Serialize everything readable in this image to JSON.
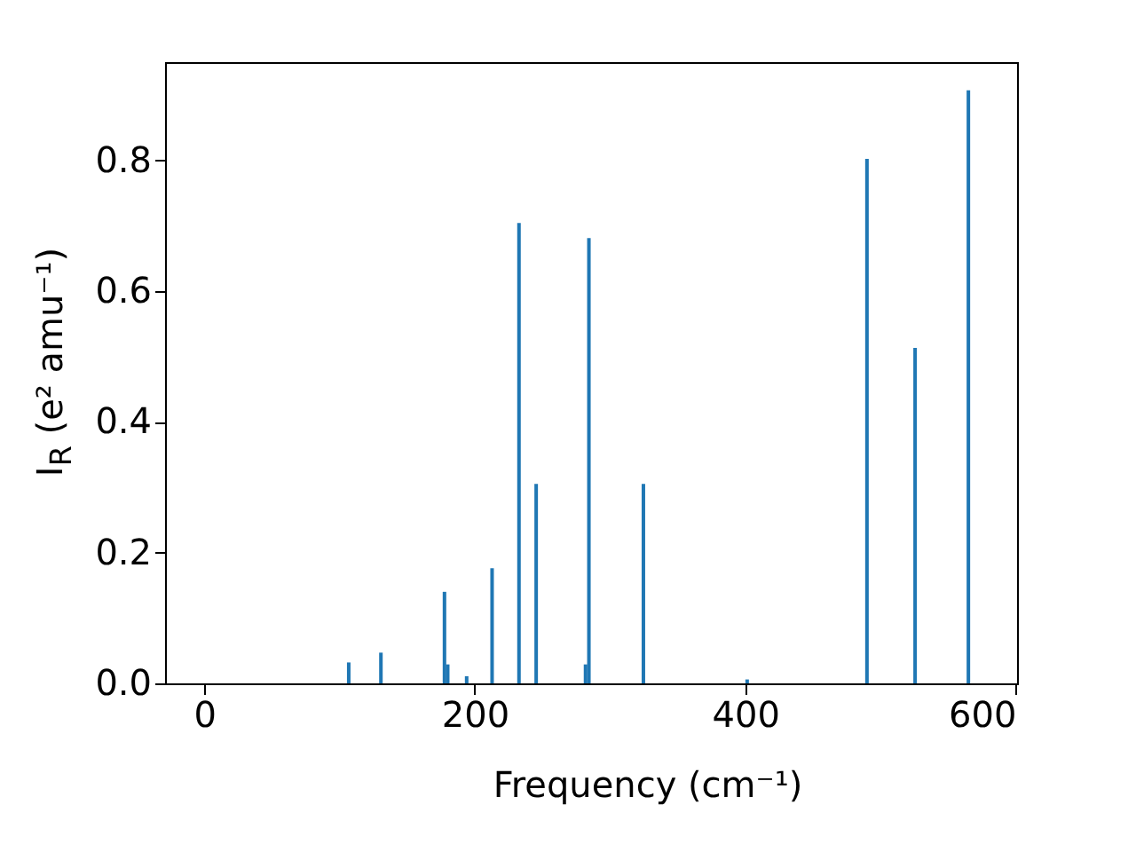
{
  "chart_data": {
    "type": "bar",
    "xlabel": "Frequency (cm⁻¹)",
    "ylabel": "I$_{R}$ (e² amu⁻¹)",
    "x": [
      106.8,
      130.6,
      177.6,
      180,
      194,
      212.8,
      232.7,
      245.4,
      281.9,
      284.4,
      324.7,
      401.4,
      490,
      525.6,
      565
    ],
    "values": [
      0.032,
      0.047,
      0.14,
      0.029,
      0.011,
      0.176,
      0.704,
      0.305,
      0.029,
      0.681,
      0.305,
      0.006,
      0.802,
      0.513,
      0.907
    ],
    "color": "#1f77b4",
    "xlim": [
      -29,
      601
    ],
    "xticks": [
      0,
      200,
      400,
      600
    ],
    "ylim": [
      0,
      0.95
    ],
    "yticks": [
      {
        "value": 0,
        "label": "0.0"
      },
      0.2,
      0.4,
      0.6,
      0.8
    ],
    "grid": false
  }
}
